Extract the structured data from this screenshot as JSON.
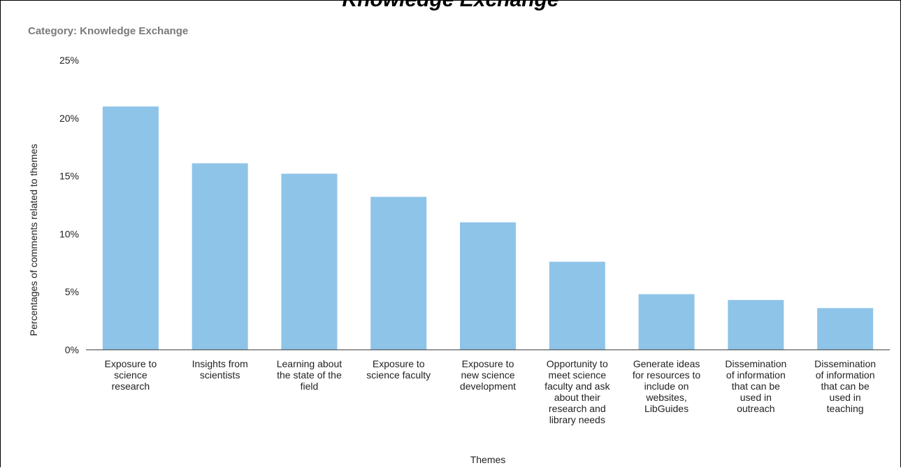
{
  "header": {
    "title_fragment": "Knowledge Exchange",
    "subtitle": "Category: Knowledge Exchange"
  },
  "chart_data": {
    "type": "bar",
    "title": "",
    "subtitle": "Category: Knowledge Exchange",
    "xlabel": "Themes",
    "ylabel": "Percentages of comments related to themes",
    "ylim": [
      0,
      25
    ],
    "yticks": [
      "0%",
      "5%",
      "10%",
      "15%",
      "20%",
      "25%"
    ],
    "grid": false,
    "bar_color": "#8fc4e9",
    "categories": [
      [
        "Exposure to",
        "science",
        "research"
      ],
      [
        "Insights from",
        "scientists"
      ],
      [
        "Learning about",
        "the state of the",
        "field"
      ],
      [
        "Exposure to",
        "science faculty"
      ],
      [
        "Exposure to",
        "new science",
        "development"
      ],
      [
        "Opportunity to",
        "meet science",
        "faculty and ask",
        "about their",
        "research and",
        "library needs"
      ],
      [
        "Generate ideas",
        "for resources to",
        "include on",
        "websites,",
        "LibGuides"
      ],
      [
        "Dissemination",
        "of information",
        "that can be",
        "used in",
        "outreach"
      ],
      [
        "Dissemination",
        "of information",
        "that can be",
        "used in",
        "teaching"
      ]
    ],
    "values": [
      21.0,
      16.1,
      15.2,
      13.2,
      11.0,
      7.6,
      4.8,
      4.3,
      3.6
    ]
  }
}
